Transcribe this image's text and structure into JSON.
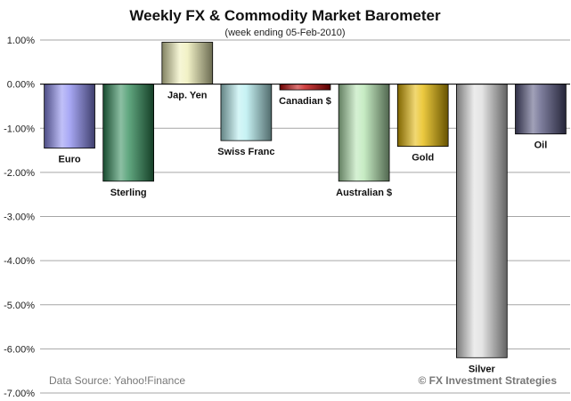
{
  "chart_data": {
    "type": "bar",
    "title": "Weekly FX & Commodity Market Barometer",
    "subtitle": "(week ending 05-Feb-2010)",
    "categories": [
      "Euro",
      "Sterling",
      "Jap. Yen",
      "Swiss Franc",
      "Canadian $",
      "Australian $",
      "Gold",
      "Silver",
      "Oil"
    ],
    "values": [
      -1.45,
      -2.2,
      0.95,
      -1.28,
      -0.13,
      -2.2,
      -1.41,
      -6.2,
      -1.13
    ],
    "unit": "%",
    "ylim": [
      -7,
      1
    ],
    "yticks": [
      1,
      0,
      -1,
      -2,
      -3,
      -4,
      -5,
      -6,
      -7
    ],
    "ytick_labels": [
      "1.00%",
      "0.00%",
      "-1.00%",
      "-2.00%",
      "-3.00%",
      "-4.00%",
      "-5.00%",
      "-6.00%",
      "-7.00%"
    ],
    "bar_colors": [
      "#8c8cf2",
      "#2e8b57",
      "#eeeeb4",
      "#b4eef0",
      "#c00000",
      "#b4e6b0",
      "#e6b800",
      "#dcdcdc",
      "#54547e"
    ],
    "grid": true,
    "legend": "none"
  },
  "footer": {
    "source": "Data Source: Yahoo!Finance",
    "credit": "© FX Investment Strategies"
  }
}
